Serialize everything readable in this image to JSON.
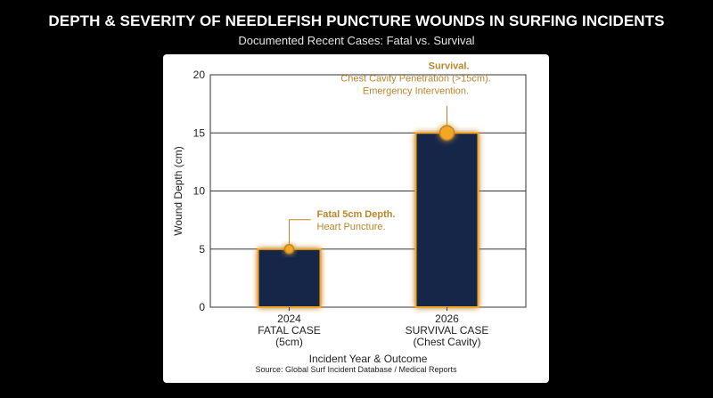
{
  "chart_data": {
    "type": "bar",
    "title": "DEPTH & SEVERITY OF NEEDLEFISH PUNCTURE WOUNDS IN SURFING INCIDENTS",
    "subtitle": "Documented Recent Cases: Fatal vs. Survival",
    "xlabel": "Incident Year & Outcome",
    "ylabel": "Wound Depth (cm)",
    "ylim": [
      0,
      20
    ],
    "yticks": [
      0,
      5,
      10,
      15,
      20
    ],
    "grid": true,
    "categories": [
      [
        "2024",
        "FATAL CASE",
        "(5cm)"
      ],
      [
        "2026",
        "SURVIVAL CASE",
        "(Chest Cavity)"
      ]
    ],
    "values": [
      5,
      15
    ],
    "annotations": [
      {
        "target": 0,
        "bold": "Fatal 5cm Depth.",
        "lines": [
          "Heart Puncture."
        ]
      },
      {
        "target": 1,
        "bold": "Survival.",
        "lines": [
          "Chest Cavity Penetration (>15cm).",
          "Emergency Intervention."
        ]
      }
    ],
    "source": "Source: Global Surf Incident Database / Medical Reports"
  },
  "colors": {
    "bar_fill": "#14284a",
    "glow": "#f5a623",
    "annotation": "#b8862b",
    "grid": "#333333"
  }
}
